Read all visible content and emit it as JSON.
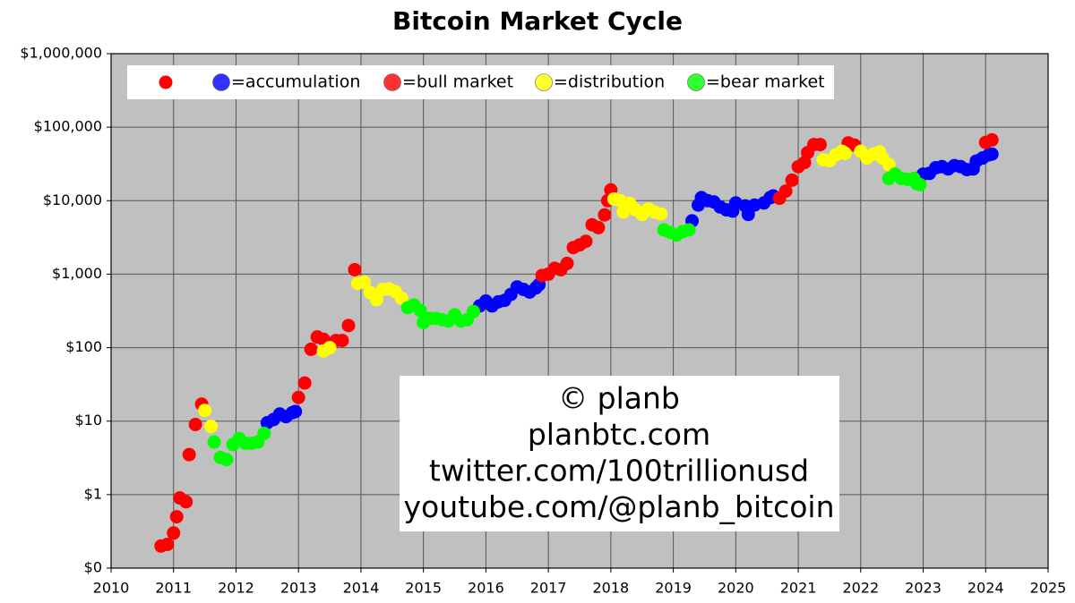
{
  "chart_data": {
    "type": "scatter",
    "title": "Bitcoin Market Cycle",
    "yscale": "log",
    "grid": true,
    "xlim": [
      2010,
      2025
    ],
    "xticks": [
      2010,
      2011,
      2012,
      2013,
      2014,
      2015,
      2016,
      2017,
      2018,
      2019,
      2020,
      2021,
      2022,
      2023,
      2024,
      2025
    ],
    "ylim": [
      0.1,
      1000000
    ],
    "yticks": [
      {
        "value": 0.1,
        "label": "$0"
      },
      {
        "value": 1,
        "label": "$1"
      },
      {
        "value": 10,
        "label": "$10"
      },
      {
        "value": 100,
        "label": "$100"
      },
      {
        "value": 1000,
        "label": "$1,000"
      },
      {
        "value": 10000,
        "label": "$10,000"
      },
      {
        "value": 100000,
        "label": "$100,000"
      },
      {
        "value": 1000000,
        "label": "$1,000,000"
      }
    ],
    "legend_position": "upper left",
    "annotation": [
      "© planb",
      "planbtc.com",
      "twitter.com/100trillionusd",
      "youtube.com/@planb_bitcoin"
    ],
    "series": [
      {
        "name": "=accumulation",
        "color": "#0000ff",
        "x": [
          2012.5,
          2012.6,
          2012.7,
          2012.8,
          2012.9,
          2012.95,
          2015.9,
          2016.0,
          2016.1,
          2016.2,
          2016.3,
          2016.4,
          2016.5,
          2016.6,
          2016.7,
          2016.8,
          2016.85,
          2019.3,
          2019.4,
          2019.45,
          2019.55,
          2019.65,
          2019.75,
          2019.85,
          2019.95,
          2020.0,
          2020.15,
          2020.2,
          2020.3,
          2020.45,
          2020.55,
          2020.6,
          2023.0,
          2023.1,
          2023.2,
          2023.3,
          2023.4,
          2023.5,
          2023.6,
          2023.7,
          2023.8,
          2023.85,
          2023.95,
          2024.05,
          2024.1
        ],
        "values": [
          9.5,
          10.5,
          12.5,
          11.5,
          13,
          13.5,
          370,
          430,
          370,
          420,
          440,
          530,
          670,
          620,
          570,
          650,
          720,
          5300,
          8700,
          11000,
          10000,
          9600,
          8200,
          7500,
          7200,
          9300,
          8500,
          6500,
          8700,
          9300,
          11000,
          11600,
          23000,
          23500,
          28000,
          29000,
          27000,
          30000,
          29000,
          26500,
          27000,
          34500,
          38000,
          42000,
          43000
        ]
      },
      {
        "name": "=bull market",
        "color": "#ff0000",
        "x": [
          2010.8,
          2010.9,
          2011.0,
          2011.05,
          2011.1,
          2011.2,
          2011.25,
          2011.35,
          2011.45,
          2013.0,
          2013.1,
          2013.2,
          2013.3,
          2013.4,
          2013.6,
          2013.7,
          2013.8,
          2013.9,
          2016.9,
          2017.0,
          2017.1,
          2017.2,
          2017.3,
          2017.4,
          2017.5,
          2017.6,
          2017.7,
          2017.8,
          2017.9,
          2017.95,
          2018.0,
          2020.7,
          2020.8,
          2020.9,
          2021.0,
          2021.1,
          2021.15,
          2021.25,
          2021.35,
          2021.8,
          2021.9,
          2024.0,
          2024.1
        ],
        "values": [
          0.2,
          0.21,
          0.3,
          0.5,
          0.9,
          0.8,
          3.5,
          9,
          17,
          21,
          33,
          95,
          140,
          130,
          125,
          125,
          200,
          1150,
          960,
          1000,
          1200,
          1150,
          1400,
          2300,
          2500,
          2800,
          4700,
          4300,
          6400,
          10000,
          14000,
          10800,
          13500,
          19000,
          29000,
          33000,
          45000,
          58000,
          58000,
          61000,
          57000,
          62000,
          67000
        ]
      },
      {
        "name": "=distribution",
        "color": "#ffff00",
        "x": [
          2011.5,
          2011.6,
          2013.4,
          2013.5,
          2013.95,
          2014.05,
          2014.15,
          2014.25,
          2014.35,
          2014.45,
          2014.55,
          2014.65,
          2018.05,
          2018.15,
          2018.2,
          2018.3,
          2018.4,
          2018.5,
          2018.6,
          2018.7,
          2018.8,
          2021.4,
          2021.5,
          2021.6,
          2021.7,
          2021.75,
          2022.0,
          2022.1,
          2022.2,
          2022.3,
          2022.35,
          2022.45
        ],
        "values": [
          14,
          8.5,
          90,
          100,
          750,
          780,
          560,
          450,
          620,
          630,
          580,
          470,
          10500,
          10000,
          7000,
          9200,
          7500,
          6500,
          7700,
          7000,
          6600,
          36000,
          35000,
          42000,
          47000,
          44000,
          47000,
          38000,
          43000,
          46000,
          38000,
          31000
        ]
      },
      {
        "name": "=bear market",
        "color": "#00ff00",
        "x": [
          2011.65,
          2011.75,
          2011.85,
          2011.95,
          2012.05,
          2012.15,
          2012.25,
          2012.35,
          2012.45,
          2014.75,
          2014.85,
          2014.95,
          2015.0,
          2015.1,
          2015.2,
          2015.3,
          2015.4,
          2015.5,
          2015.6,
          2015.7,
          2015.8,
          2018.85,
          2018.95,
          2019.05,
          2019.15,
          2019.25,
          2022.45,
          2022.55,
          2022.65,
          2022.75,
          2022.85,
          2022.9,
          2022.95
        ],
        "values": [
          5.2,
          3.2,
          3.0,
          4.8,
          5.8,
          5,
          5,
          5.2,
          6.8,
          350,
          380,
          320,
          220,
          250,
          250,
          240,
          230,
          280,
          230,
          240,
          310,
          4000,
          3700,
          3400,
          3800,
          4000,
          20000,
          23000,
          20000,
          19500,
          20000,
          17000,
          16500
        ]
      }
    ]
  }
}
